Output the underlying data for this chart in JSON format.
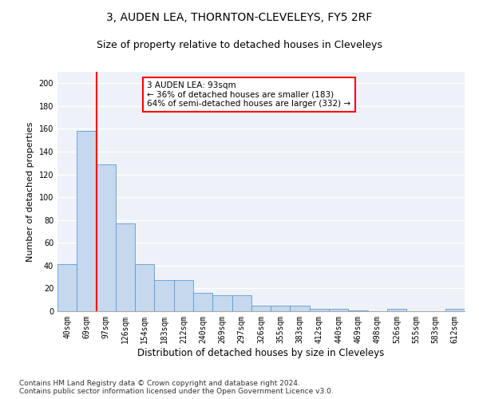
{
  "title": "3, AUDEN LEA, THORNTON-CLEVELEYS, FY5 2RF",
  "subtitle": "Size of property relative to detached houses in Cleveleys",
  "xlabel": "Distribution of detached houses by size in Cleveleys",
  "ylabel": "Number of detached properties",
  "categories": [
    "40sqm",
    "69sqm",
    "97sqm",
    "126sqm",
    "154sqm",
    "183sqm",
    "212sqm",
    "240sqm",
    "269sqm",
    "297sqm",
    "326sqm",
    "355sqm",
    "383sqm",
    "412sqm",
    "440sqm",
    "469sqm",
    "498sqm",
    "526sqm",
    "555sqm",
    "583sqm",
    "612sqm"
  ],
  "values": [
    41,
    158,
    129,
    77,
    41,
    27,
    27,
    16,
    14,
    14,
    5,
    5,
    5,
    2,
    2,
    1,
    0,
    2,
    0,
    0,
    2
  ],
  "bar_color": "#c5d8ed",
  "bar_edge_color": "#5b9bd5",
  "property_line_x": 1.5,
  "annotation_text": "3 AUDEN LEA: 93sqm\n← 36% of detached houses are smaller (183)\n64% of semi-detached houses are larger (332) →",
  "annotation_box_color": "white",
  "annotation_box_edge_color": "red",
  "vline_color": "red",
  "ylim": [
    0,
    210
  ],
  "yticks": [
    0,
    20,
    40,
    60,
    80,
    100,
    120,
    140,
    160,
    180,
    200
  ],
  "background_color": "#eef2f8",
  "grid_color": "white",
  "footer": "Contains HM Land Registry data © Crown copyright and database right 2024.\nContains public sector information licensed under the Open Government Licence v3.0.",
  "title_fontsize": 10,
  "subtitle_fontsize": 9,
  "xlabel_fontsize": 8.5,
  "ylabel_fontsize": 8,
  "footer_fontsize": 6.5,
  "tick_fontsize": 7,
  "annotation_fontsize": 7.5
}
